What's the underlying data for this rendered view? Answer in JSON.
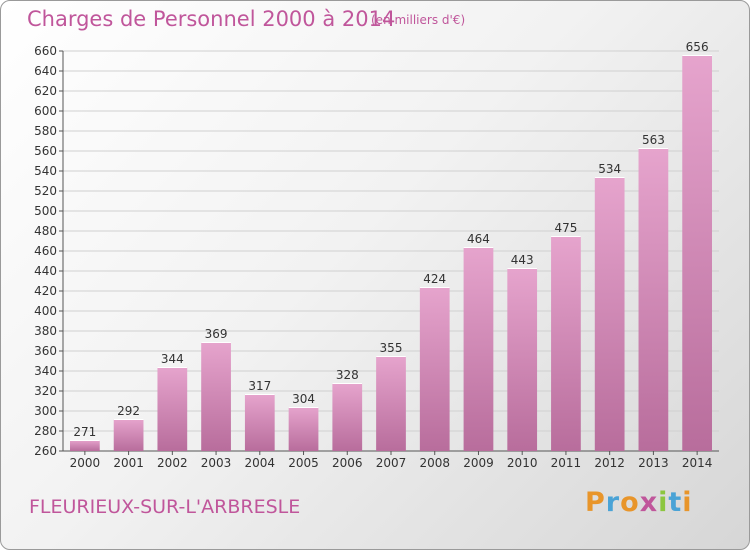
{
  "header": {
    "title": "Charges de Personnel 2000 à 2014",
    "subtitle": "(en milliers d'€)"
  },
  "footer": {
    "city": "FLEURIEUX-SUR-L'ARBRESLE",
    "logo": "Proxiti",
    "logo_colors": [
      "#e8952a",
      "#4aa3d6",
      "#e8952a",
      "#c0569b",
      "#8cc63f",
      "#4aa3d6",
      "#e8952a"
    ]
  },
  "chart_data": {
    "type": "bar",
    "categories": [
      "2000",
      "2001",
      "2002",
      "2003",
      "2004",
      "2005",
      "2006",
      "2007",
      "2008",
      "2009",
      "2010",
      "2011",
      "2012",
      "2013",
      "2014"
    ],
    "values": [
      271,
      292,
      344,
      369,
      317,
      304,
      328,
      355,
      424,
      464,
      443,
      475,
      534,
      563,
      656
    ],
    "ylim": [
      260,
      660
    ],
    "ytick_step": 20,
    "grid": true,
    "bar_color_top": "#e6a4cd",
    "bar_color_bottom": "#b86d9c"
  }
}
